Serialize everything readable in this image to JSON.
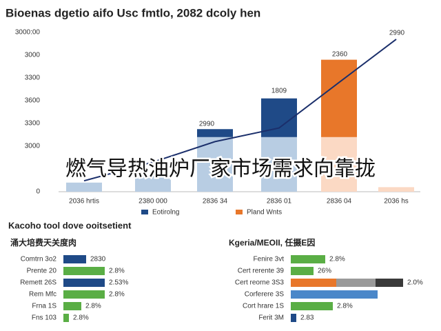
{
  "title": "Bioenas dgetio aifo Usc fmtlo, 2082 dcoly hen",
  "overlay": "燃气导热油炉厂家市场需求向靠拢",
  "chart_data": [
    {
      "type": "bar",
      "categories": [
        "2036 hrtis",
        "2380 000",
        "2836 34",
        "2836 01",
        "2836 04",
        "2036 hs"
      ],
      "ylim": [
        0,
        7000
      ],
      "yticks": [
        0,
        {
          "value": 2000,
          "label": "3000"
        },
        {
          "value": 3000,
          "label": "3300"
        },
        {
          "value": 4000,
          "label": "3600"
        },
        {
          "value": 5000,
          "label": "3300"
        },
        {
          "value": 6000,
          "label": "3000"
        },
        {
          "value": 7000,
          "label": "3000:00"
        }
      ],
      "grid": false,
      "series": [
        {
          "colors": [
            "#b8cde3",
            "#b8cde3",
            "#b8cde3",
            "#b8cde3",
            "#fbd9c4",
            "#fbd9c4"
          ],
          "values": [
            400,
            700,
            2400,
            2400,
            2400,
            200
          ]
        },
        {
          "name": "Eotirolng",
          "color": "#1f4a87",
          "values": [
            null,
            null,
            350,
            1700,
            null,
            null
          ]
        },
        {
          "name": "Pland Wnts",
          "color": "#e8772a",
          "values": [
            null,
            null,
            null,
            null,
            3400,
            null
          ]
        },
        {
          "type": "line",
          "color": "#1b2f6b",
          "values": [
            480,
            1300,
            2200,
            2800,
            4800,
            6700
          ]
        }
      ],
      "annotations": [
        "2990",
        "1809",
        "2360",
        "2990"
      ]
    },
    {
      "type": "hbar",
      "title": "Kacoho tool dove ooitsetient",
      "subtitle": "涌大培费天关度肉",
      "categories": [
        "Comtrn 3o2",
        "Prente 20",
        "Remett 26S",
        "Rem Mfc",
        "Frna 1S",
        "Fns 103"
      ],
      "xlim": [
        0,
        110
      ],
      "series": [
        {
          "colors": [
            "#1f4a87",
            "#5aae45",
            "#1f4a87",
            "#5aae45",
            "#5aae45",
            "#5aae45"
          ],
          "values": [
            33,
            60,
            60,
            60,
            26,
            8
          ]
        }
      ],
      "labels": [
        "2830",
        "2.8%",
        "2.53%",
        "2.8%",
        "2.8%",
        "2.8%"
      ]
    },
    {
      "type": "hbar",
      "subtitle": "Kgeria/MEOII, 任摄E因",
      "categories": [
        "Fenire 3vt",
        "Cert rerente 39",
        "Cert reorne 3S3",
        "Corferere 3S",
        "Cort hrare 1S",
        "Ferit 3M"
      ],
      "xlim": [
        0,
        170
      ],
      "series": [
        {
          "colors": [
            "#5aae45",
            "#5aae45",
            "#e8772a",
            "#4a87c9",
            "#5aae45",
            "#1f4a87"
          ],
          "values": [
            50,
            33,
            66,
            126,
            61,
            8
          ]
        },
        {
          "color": "#9a9a9a",
          "values": [
            null,
            null,
            57,
            null,
            null,
            null
          ]
        },
        {
          "color": "#3a3a3a",
          "values": [
            null,
            null,
            40,
            null,
            null,
            null
          ]
        }
      ],
      "labels": [
        "2.8%",
        "26%",
        "2.0%",
        null,
        "2.8%",
        "2.83"
      ]
    }
  ]
}
